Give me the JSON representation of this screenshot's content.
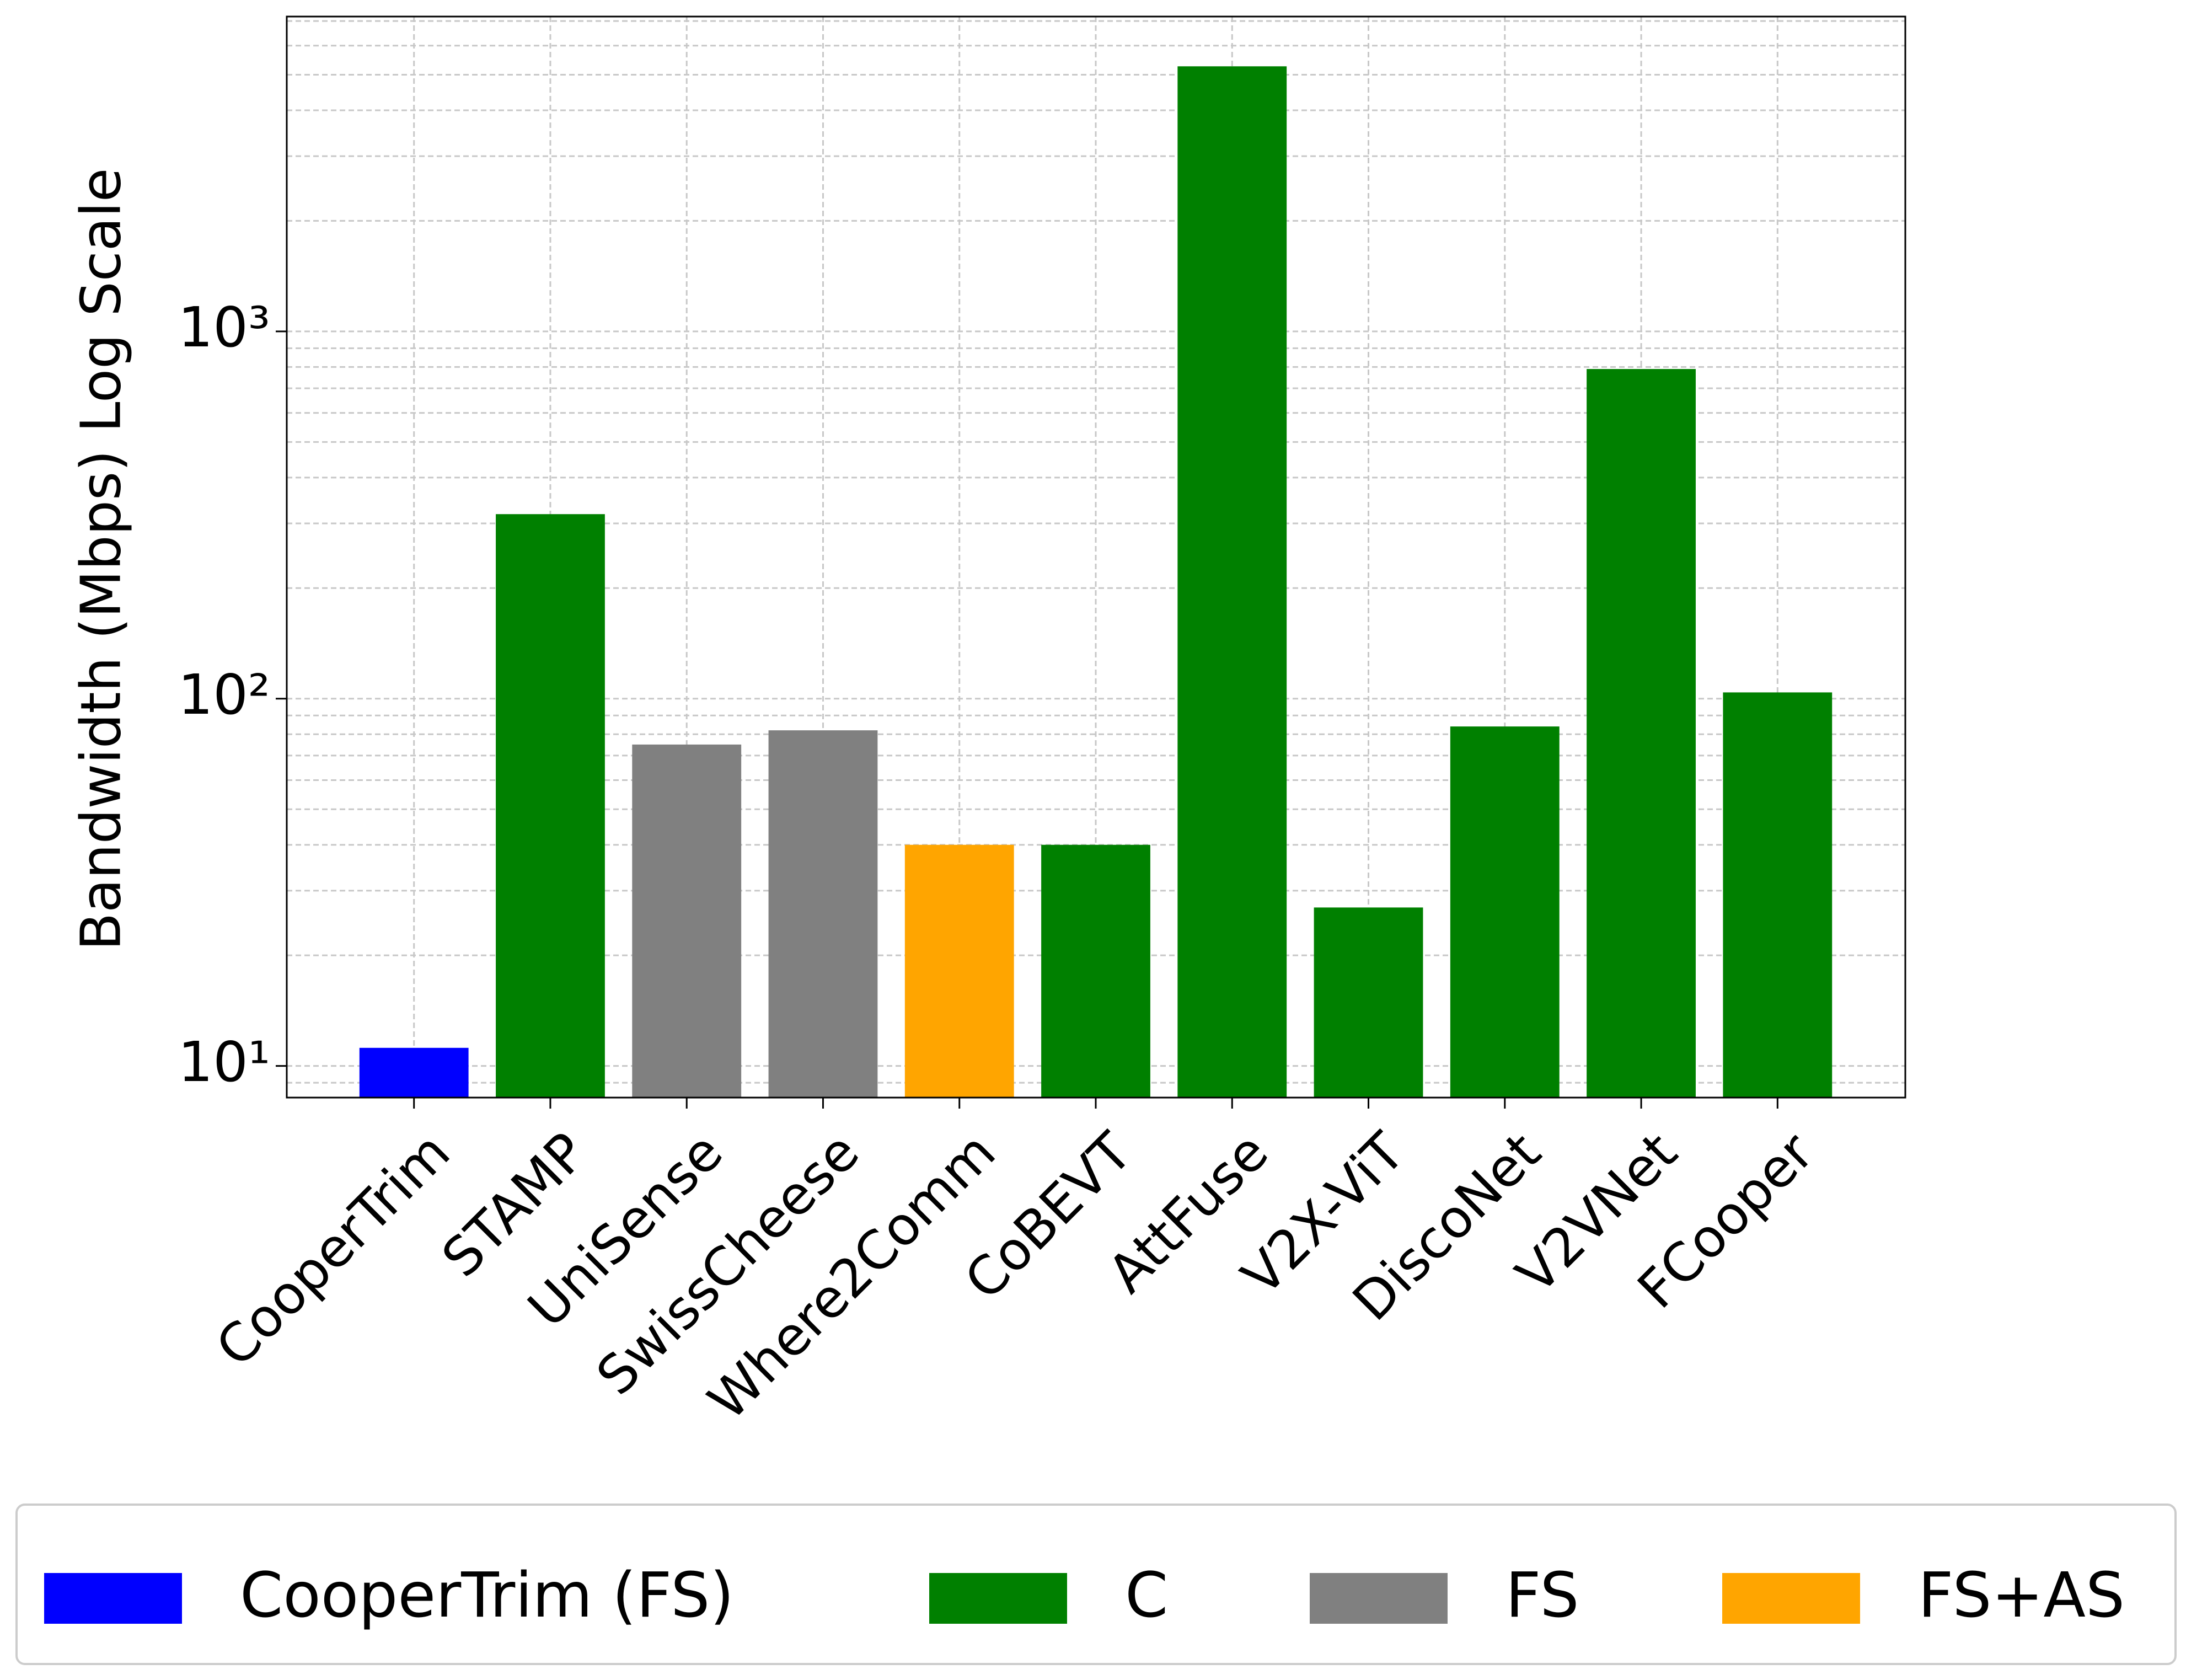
{
  "chart_data": {
    "type": "bar",
    "y_label": "Bandwidth (Mbps) Log Scale",
    "categories": [
      "CooperTrim",
      "STAMP",
      "UniSense",
      "SwissCheese",
      "Where2Comm",
      "CoBEVT",
      "AttFuse",
      "V2X-ViT",
      "DiscoNet",
      "V2VNet",
      "FCooper"
    ],
    "series": [
      {
        "name": "CooperTrim (FS)",
        "color": "#0000ff",
        "values": [
          11.2,
          null,
          null,
          null,
          null,
          null,
          null,
          null,
          null,
          null,
          null
        ]
      },
      {
        "name": "C",
        "color": "#008000",
        "values": [
          null,
          318,
          null,
          null,
          null,
          40,
          5270,
          27,
          84,
          790,
          104
        ]
      },
      {
        "name": "FS",
        "color": "#808080",
        "values": [
          null,
          null,
          75,
          82,
          null,
          null,
          null,
          null,
          null,
          null,
          null
        ]
      },
      {
        "name": "FS+AS",
        "color": "#ffa500",
        "values": [
          null,
          null,
          null,
          null,
          40,
          null,
          null,
          null,
          null,
          null,
          null
        ]
      }
    ],
    "log_scale": true,
    "ylim": [
      8.2,
      7200
    ],
    "yticks": [
      {
        "value": 10,
        "label": "10¹"
      },
      {
        "value": 100,
        "label": "10²"
      },
      {
        "value": 1000,
        "label": "10³"
      }
    ],
    "yminorticks": [
      9,
      20,
      30,
      40,
      50,
      60,
      70,
      80,
      90,
      200,
      300,
      400,
      500,
      600,
      700,
      800,
      900,
      2000,
      3000,
      4000,
      5000,
      6000,
      7000
    ],
    "grid": true,
    "legend_position": "bottom"
  }
}
